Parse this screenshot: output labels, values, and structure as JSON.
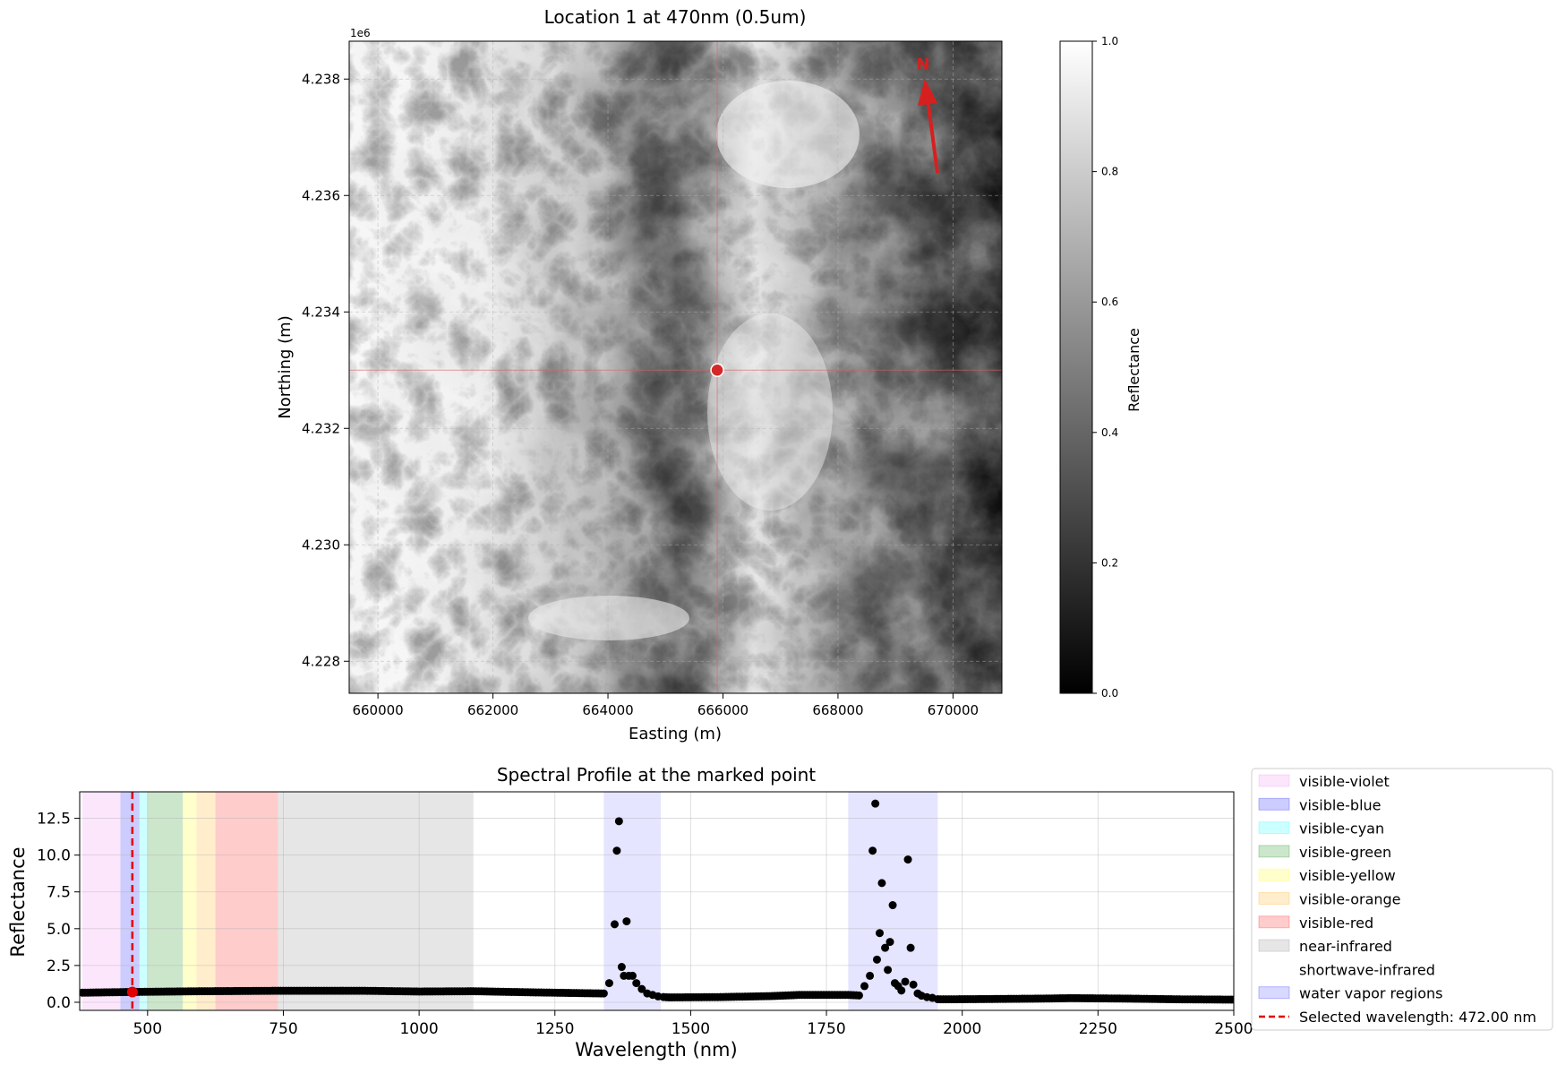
{
  "chart_data": [
    {
      "type": "heatmap",
      "title": "Location 1 at 470nm (0.5um)",
      "xlabel": "Easting (m)",
      "ylabel": "Northing (m)",
      "y_offset_label": "1e6",
      "xlim": [
        659500,
        670850
      ],
      "ylim": [
        4227450,
        4238650
      ],
      "x_ticks": [
        660000,
        662000,
        664000,
        666000,
        668000,
        670000
      ],
      "x_tick_labels": [
        "660000",
        "662000",
        "664000",
        "666000",
        "668000",
        "670000"
      ],
      "y_ticks": [
        4228000,
        4230000,
        4232000,
        4234000,
        4236000,
        4238000
      ],
      "y_tick_labels": [
        "4.228",
        "4.230",
        "4.232",
        "4.234",
        "4.236",
        "4.238"
      ],
      "grid": true,
      "marked_point": {
        "x": 665900,
        "y": 4233000
      },
      "north_arrow_label": "N",
      "colorbar": {
        "label": "Reflectance",
        "range": [
          0.0,
          1.0
        ],
        "ticks": [
          "0.0",
          "0.2",
          "0.4",
          "0.6",
          "0.8",
          "1.0"
        ],
        "colormap": "gray"
      }
    },
    {
      "type": "scatter",
      "title": "Spectral Profile at the marked point",
      "xlabel": "Wavelength (nm)",
      "ylabel": "Reflectance",
      "xlim": [
        375,
        2500
      ],
      "ylim": [
        -0.55,
        14.3
      ],
      "x_ticks": [
        500,
        750,
        1000,
        1250,
        1500,
        1750,
        2000,
        2250,
        2500
      ],
      "x_tick_labels": [
        "500",
        "750",
        "1000",
        "1250",
        "1500",
        "1750",
        "2000",
        "2250",
        "2500"
      ],
      "y_ticks": [
        0.0,
        2.5,
        5.0,
        7.5,
        10.0,
        12.5
      ],
      "y_tick_labels": [
        "0.0",
        "2.5",
        "5.0",
        "7.5",
        "10.0",
        "12.5"
      ],
      "grid": true,
      "legend_position": "outside-right",
      "regions": [
        {
          "name": "visible-violet",
          "range": [
            380,
            450
          ],
          "color": "#ee82ee",
          "alpha": 0.2
        },
        {
          "name": "visible-blue",
          "range": [
            450,
            485
          ],
          "color": "#0000ff",
          "alpha": 0.2
        },
        {
          "name": "visible-cyan",
          "range": [
            485,
            500
          ],
          "color": "#00ffff",
          "alpha": 0.2
        },
        {
          "name": "visible-green",
          "range": [
            500,
            565
          ],
          "color": "#008000",
          "alpha": 0.2
        },
        {
          "name": "visible-yellow",
          "range": [
            565,
            590
          ],
          "color": "#ffff00",
          "alpha": 0.2
        },
        {
          "name": "visible-orange",
          "range": [
            590,
            625
          ],
          "color": "#ffa500",
          "alpha": 0.2
        },
        {
          "name": "visible-red",
          "range": [
            625,
            740
          ],
          "color": "#ff0000",
          "alpha": 0.2
        },
        {
          "name": "near-infrared",
          "range": [
            740,
            1100
          ],
          "color": "#808080",
          "alpha": 0.2
        },
        {
          "name": "shortwave-infrared",
          "range": [
            1100,
            2500
          ],
          "color": "#ffffff",
          "alpha": 0.2
        },
        {
          "name": "water vapor regions",
          "ranges": [
            [
              1340,
              1445
            ],
            [
              1790,
              1955
            ]
          ],
          "color": "#0000ff",
          "alpha": 0.1
        }
      ],
      "selected_wavelength": 472,
      "selected_label": "Selected wavelength: 472.00 nm",
      "selected_reflectance": 0.7,
      "series": [
        {
          "baseline": [
            [
              380,
              0.65
            ],
            [
              470,
              0.7
            ],
            [
              600,
              0.75
            ],
            [
              740,
              0.78
            ],
            [
              900,
              0.78
            ],
            [
              1000,
              0.73
            ],
            [
              1100,
              0.75
            ],
            [
              1200,
              0.68
            ],
            [
              1300,
              0.62
            ],
            [
              1340,
              0.6
            ],
            [
              1460,
              0.33
            ],
            [
              1550,
              0.35
            ],
            [
              1650,
              0.42
            ],
            [
              1700,
              0.5
            ],
            [
              1790,
              0.5
            ],
            [
              1960,
              0.2
            ],
            [
              2050,
              0.22
            ],
            [
              2150,
              0.25
            ],
            [
              2200,
              0.28
            ],
            [
              2300,
              0.25
            ],
            [
              2400,
              0.2
            ],
            [
              2500,
              0.18
            ]
          ],
          "peaks": [
            {
              "x": 1350,
              "y": 1.3
            },
            {
              "x": 1360,
              "y": 5.3
            },
            {
              "x": 1364,
              "y": 10.3
            },
            {
              "x": 1368,
              "y": 12.3
            },
            {
              "x": 1373,
              "y": 2.4
            },
            {
              "x": 1377,
              "y": 1.8
            },
            {
              "x": 1382,
              "y": 5.5
            },
            {
              "x": 1386,
              "y": 1.8
            },
            {
              "x": 1393,
              "y": 1.8
            },
            {
              "x": 1400,
              "y": 1.3
            },
            {
              "x": 1410,
              "y": 0.9
            },
            {
              "x": 1420,
              "y": 0.6
            },
            {
              "x": 1430,
              "y": 0.5
            },
            {
              "x": 1440,
              "y": 0.4
            },
            {
              "x": 1820,
              "y": 1.1
            },
            {
              "x": 1830,
              "y": 1.8
            },
            {
              "x": 1835,
              "y": 10.3
            },
            {
              "x": 1840,
              "y": 13.5
            },
            {
              "x": 1843,
              "y": 2.9
            },
            {
              "x": 1848,
              "y": 4.7
            },
            {
              "x": 1852,
              "y": 8.1
            },
            {
              "x": 1858,
              "y": 3.7
            },
            {
              "x": 1863,
              "y": 2.2
            },
            {
              "x": 1867,
              "y": 4.1
            },
            {
              "x": 1872,
              "y": 6.6
            },
            {
              "x": 1876,
              "y": 1.3
            },
            {
              "x": 1882,
              "y": 1.1
            },
            {
              "x": 1888,
              "y": 0.8
            },
            {
              "x": 1895,
              "y": 1.4
            },
            {
              "x": 1900,
              "y": 9.7
            },
            {
              "x": 1905,
              "y": 3.7
            },
            {
              "x": 1910,
              "y": 1.2
            },
            {
              "x": 1918,
              "y": 0.6
            },
            {
              "x": 1925,
              "y": 0.45
            },
            {
              "x": 1935,
              "y": 0.35
            },
            {
              "x": 1945,
              "y": 0.3
            }
          ]
        }
      ]
    }
  ]
}
